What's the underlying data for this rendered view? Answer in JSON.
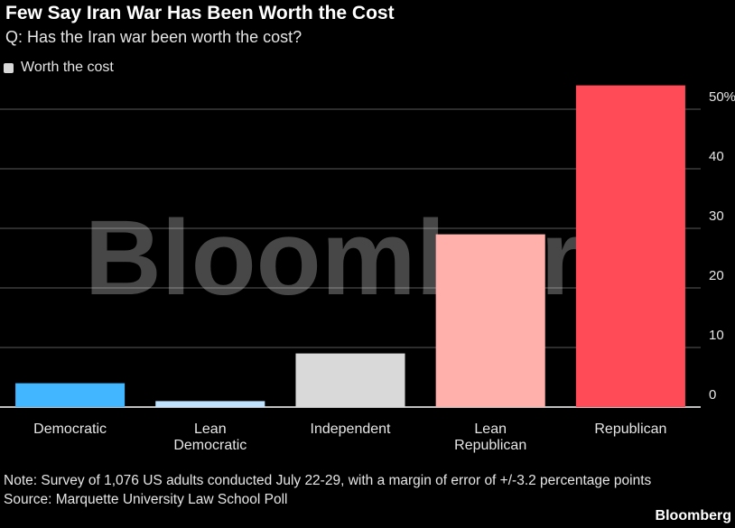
{
  "title": "Few Say Iran War Has Been Worth the Cost",
  "subtitle": "Q: Has the Iran war been worth the cost?",
  "legend": {
    "label": "Worth the cost",
    "swatch_color": "#d9d9d9"
  },
  "watermark": "Bloomberg",
  "note": "Note: Survey of 1,076 US adults conducted July 22-29, with a margin of error of +/-3.2 percentage points",
  "source": "Source: Marquette University Law School Poll",
  "brand": "Bloomberg",
  "chart_data": {
    "type": "bar",
    "categories": [
      "Democratic",
      "Lean Democratic",
      "Independent",
      "Lean Republican",
      "Republican"
    ],
    "category_labels": [
      [
        "Democratic"
      ],
      [
        "Lean",
        "Democratic"
      ],
      [
        "Independent"
      ],
      [
        "Lean",
        "Republican"
      ],
      [
        "Republican"
      ]
    ],
    "series": [
      {
        "name": "Worth the cost",
        "values": [
          4,
          1,
          9,
          29,
          54
        ]
      }
    ],
    "bar_colors": [
      "#42b6ff",
      "#bfe3ff",
      "#d9d9d9",
      "#ffb0ab",
      "#ff4a57"
    ],
    "yticks": [
      0,
      10,
      20,
      30,
      40,
      50
    ],
    "ytick_labels": [
      "0",
      "10",
      "20",
      "30",
      "40",
      "50%"
    ],
    "ylim": [
      0,
      55
    ],
    "grid": true,
    "y_axis_side": "right"
  }
}
